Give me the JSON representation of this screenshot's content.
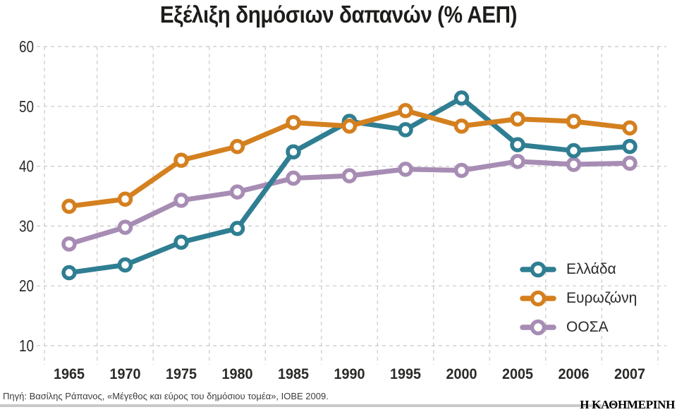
{
  "title": "Εξέλιξη δημόσιων δαπανών (% ΑΕΠ)",
  "source": {
    "text": "Πηγή: Βασίλης Ράπανος, «Μέγεθος και εύρος του δημόσιου τομέα», ΙΟΒΕ 2009."
  },
  "brand": {
    "text": "Η ΚΑΘΗΜΕΡΙΝΗ"
  },
  "colors": {
    "greece": "#2f7e92",
    "eurozone": "#d4801f",
    "oecd": "#a78cb4",
    "grid": "#c8c8c8",
    "axis_text": "#2a2a28",
    "footer_rule": "#c9c9c9",
    "marker_fill": "#ffffff"
  },
  "chart_data": {
    "type": "line",
    "title": "Εξέλιξη δημόσιων δαπανών (% ΑΕΠ)",
    "categories": [
      "1965",
      "1970",
      "1975",
      "1980",
      "1985",
      "1990",
      "1995",
      "2000",
      "2005",
      "2006",
      "2007"
    ],
    "series": [
      {
        "name": "Ελλάδα",
        "color": "#2f7e92",
        "values": [
          22.2,
          23.5,
          27.3,
          29.6,
          42.4,
          47.5,
          46.1,
          51.4,
          43.6,
          42.6,
          43.3
        ]
      },
      {
        "name": "Ευρωζώνη",
        "color": "#d4801f",
        "values": [
          33.3,
          34.5,
          41.0,
          43.3,
          47.3,
          46.7,
          49.3,
          46.7,
          47.9,
          47.5,
          46.4
        ]
      },
      {
        "name": "ΟΟΣΑ",
        "color": "#a78cb4",
        "values": [
          27.0,
          29.8,
          34.3,
          35.7,
          38.0,
          38.4,
          39.5,
          39.3,
          40.8,
          40.3,
          40.5
        ]
      }
    ],
    "xlabel": "",
    "ylabel": "",
    "ylim": [
      10,
      60
    ],
    "yticks": [
      10,
      20,
      30,
      40,
      50,
      60
    ],
    "grid": true,
    "grid_style": "dashed",
    "legend_position": "inside-right",
    "marker": "open-circle",
    "draw_order": [
      2,
      0,
      1
    ]
  }
}
